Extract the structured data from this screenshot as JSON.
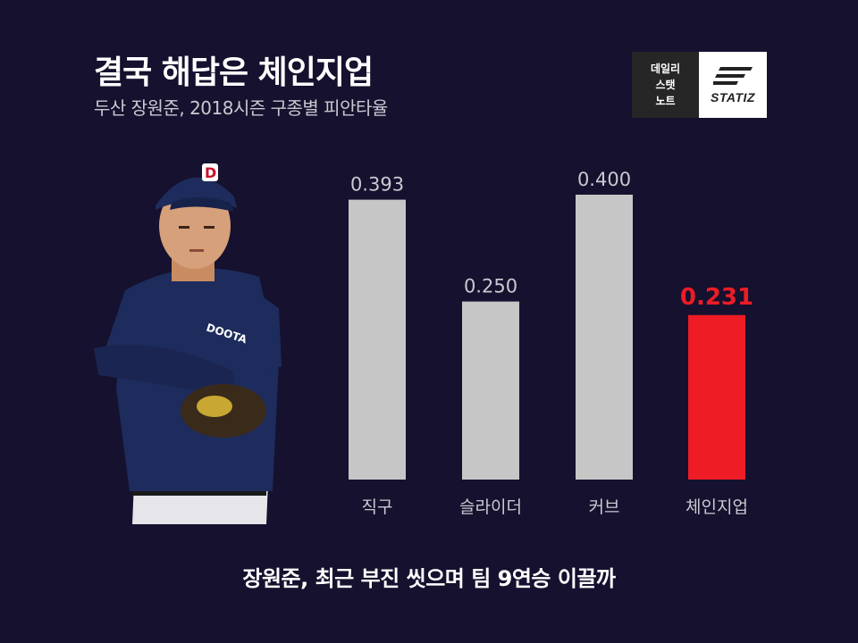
{
  "header": {
    "title": "결국 해답은 체인지업",
    "subtitle": "두산 장원준, 2018시즌 구종별 피안타율"
  },
  "logo": {
    "left_lines": [
      "데일리",
      "스탯",
      "노트"
    ],
    "brand": "STATIZ"
  },
  "footer": {
    "caption": "장원준, 최근 부진 씻으며 팀 9연승 이끌까"
  },
  "colors": {
    "background": "#15112e",
    "bar_default": "#c6c6c6",
    "bar_highlight": "#ee1c25",
    "label_default": "#c9c9d1",
    "label_highlight": "#ee1c25"
  },
  "chart_data": {
    "type": "bar",
    "title": "",
    "xlabel": "",
    "ylabel": "",
    "categories": [
      "직구",
      "슬라이더",
      "커브",
      "체인지업"
    ],
    "values": [
      0.393,
      0.25,
      0.4,
      0.231
    ],
    "value_labels": [
      "0.393",
      "0.250",
      "0.400",
      "0.231"
    ],
    "highlight_index": 3,
    "ylim": [
      0,
      0.4
    ],
    "grid": false,
    "legend": "none"
  }
}
